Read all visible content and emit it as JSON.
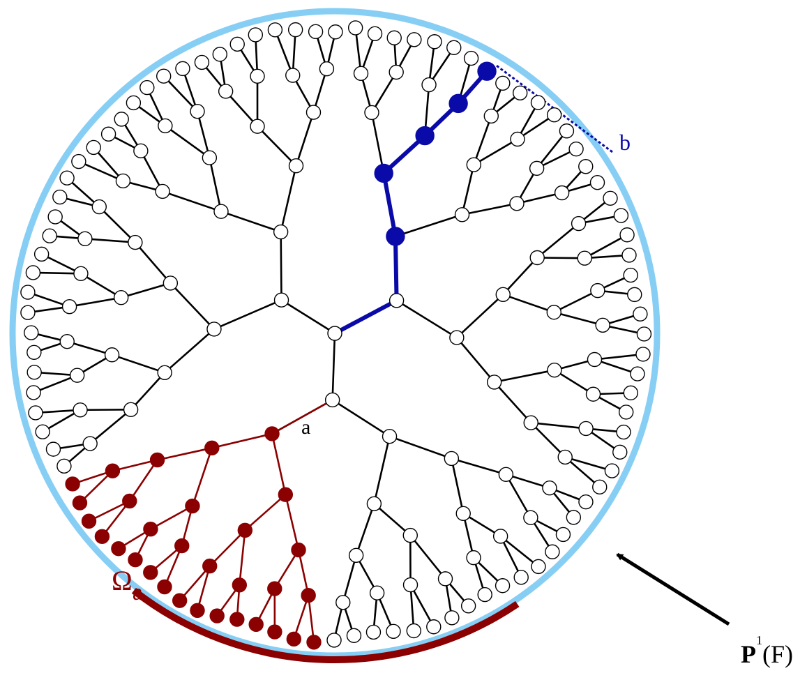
{
  "diagram": {
    "labels": {
      "node_a": "a",
      "node_b": "b",
      "omega": "Ω",
      "omega_sub": "a",
      "boundary_main": "P",
      "boundary_sup": "1",
      "boundary_arg": "(F)"
    },
    "colors": {
      "boundary_circle": "#87CEF5",
      "tree_edge": "#000000",
      "node_fill": "#ffffff",
      "subtree": "#8B0000",
      "path": "#0A0AA8",
      "arrow": "#000000"
    },
    "tree": {
      "root_branches": 3,
      "depth": 6,
      "branching": 2,
      "boundary_leaves": 96
    }
  }
}
